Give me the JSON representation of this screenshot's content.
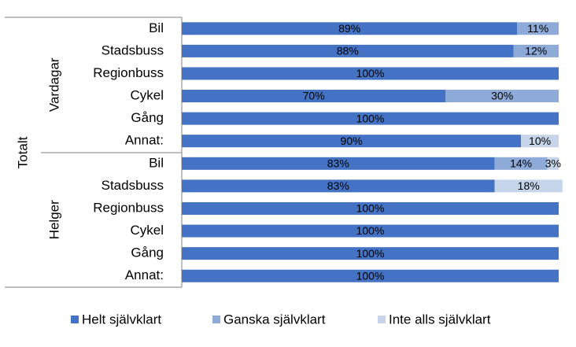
{
  "chart_data": {
    "type": "stacked_bar_horizontal",
    "outer_group": "Totalt",
    "groups": [
      {
        "name": "Vardagar",
        "categories": [
          "Bil",
          "Stadsbuss",
          "Regionbuss",
          "Cykel",
          "Gång",
          "Annat:"
        ]
      },
      {
        "name": "Helger",
        "categories": [
          "Bil",
          "Stadsbuss",
          "Regionbuss",
          "Cykel",
          "Gång",
          "Annat:"
        ]
      }
    ],
    "xlim": [
      0,
      100
    ],
    "legend": "bottom",
    "series": [
      {
        "name": "Helt självklart",
        "color": "#4472c4",
        "values": [
          89,
          88,
          100,
          70,
          100,
          90,
          83,
          83,
          100,
          100,
          100,
          100
        ],
        "value_labels": [
          "89%",
          "88%",
          "100%",
          "70%",
          "100%",
          "90%",
          "83%",
          "83%",
          "100%",
          "100%",
          "100%",
          "100%"
        ]
      },
      {
        "name": "Ganska självklart",
        "color": "#8eaad8",
        "values": [
          11,
          12,
          null,
          30,
          null,
          null,
          14,
          null,
          null,
          null,
          null,
          null
        ],
        "value_labels": [
          "11%",
          "12%",
          null,
          "30%",
          null,
          null,
          "14%",
          null,
          null,
          null,
          null,
          null
        ]
      },
      {
        "name": "Inte alls självklart",
        "color": "#c6d5ea",
        "values": [
          null,
          null,
          null,
          null,
          null,
          10,
          3,
          18,
          null,
          null,
          null,
          null
        ],
        "value_labels": [
          null,
          null,
          null,
          null,
          null,
          "10%",
          "3%",
          "18%",
          null,
          null,
          null,
          null
        ]
      }
    ]
  }
}
